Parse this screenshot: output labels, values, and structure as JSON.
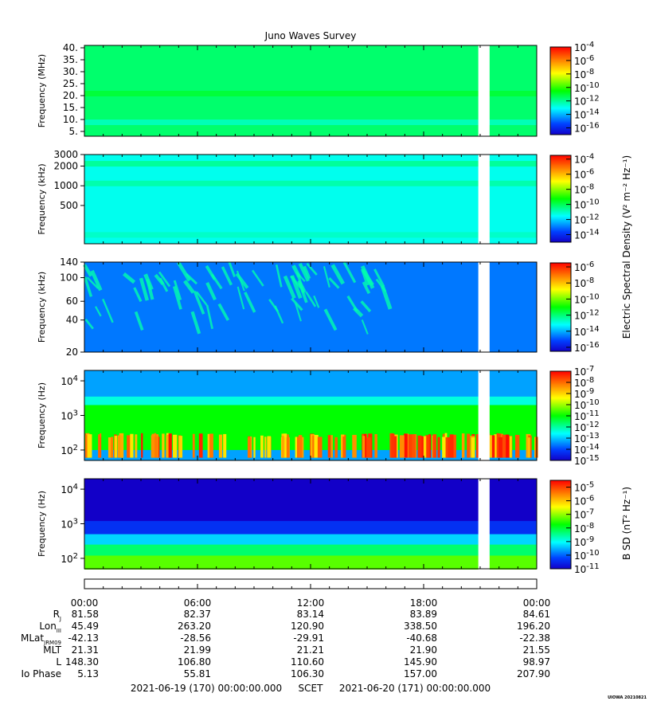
{
  "title": "Juno Waves Survey",
  "footer": {
    "start": "2021-06-19 (170) 00:00:00.000",
    "mid": "SCET",
    "end": "2021-06-20 (171) 00:00:00.000",
    "credit": "UIOWA 20210821"
  },
  "colorbar_labels": {
    "e": "Electric Spectral Density (V² m⁻² Hz⁻¹)",
    "b": "B SD (nT² Hz⁻¹)"
  },
  "colors": {
    "background_hf": "#00ffe0",
    "background_low": "#1e5fff",
    "gap": "#ffffff"
  },
  "chart_data": [
    {
      "type": "heatmap",
      "panel": "HFR-high",
      "ylabel": "Frequency (MHz)",
      "yscale": "linear",
      "ylim": [
        3,
        41
      ],
      "yticks": [
        "40.",
        "35.",
        "30.",
        "25.",
        "20.",
        "15.",
        "10.",
        "5."
      ],
      "ytick_values": [
        40,
        35,
        30,
        25,
        20,
        15,
        10,
        5
      ],
      "colorbar": {
        "ticks": [
          "10-4",
          "10-6",
          "10-8",
          "10-10",
          "10-12",
          "10-14",
          "10-16"
        ],
        "range": [
          -17,
          -4
        ]
      },
      "bands": [
        {
          "freq": 21,
          "level": -11
        },
        {
          "freq": 9,
          "level": -12.5
        }
      ],
      "data_gap_hours": [
        20.9,
        21.5
      ]
    },
    {
      "type": "heatmap",
      "panel": "HFR-low",
      "ylabel": "Frequency (kHz)",
      "yscale": "log",
      "ylim": [
        130,
        3000
      ],
      "yticks": [
        "3000",
        "2000",
        "1000",
        "500"
      ],
      "ytick_values": [
        3000,
        2000,
        1000,
        500
      ],
      "colorbar": {
        "ticks": [
          "10-4",
          "10-6",
          "10-8",
          "10-10",
          "10-12",
          "10-14"
        ],
        "range": [
          -15,
          -3.5
        ]
      },
      "bands": [
        {
          "freq": 2200,
          "level": -10.5
        },
        {
          "freq": 1100,
          "level": -10.7
        },
        {
          "freq": 180,
          "level": -11
        }
      ],
      "data_gap_hours": [
        20.9,
        21.5
      ]
    },
    {
      "type": "heatmap",
      "panel": "LFR-high",
      "ylabel": "Frequency (kHz)",
      "yscale": "log",
      "ylim": [
        20,
        140
      ],
      "yticks": [
        "140",
        "100",
        "60",
        "40",
        "20"
      ],
      "ytick_values": [
        140,
        100,
        60,
        40,
        20
      ],
      "colorbar": {
        "ticks": [
          "10-6",
          "10-8",
          "10-10",
          "10-12",
          "10-14",
          "10-16"
        ],
        "range": [
          -16.5,
          -5.5
        ]
      },
      "data_gap_hours": [
        20.9,
        21.5
      ]
    },
    {
      "type": "heatmap",
      "panel": "LFR-E",
      "ylabel": "Frequency (Hz)",
      "yscale": "log",
      "ylim": [
        50,
        20000
      ],
      "yticks": [
        "10⁴",
        "10³",
        "10²"
      ],
      "ytick_values": [
        10000,
        1000,
        100
      ],
      "colorbar": {
        "ticks": [
          "10-7",
          "10-8",
          "10-9",
          "10-10",
          "10-11",
          "10-12",
          "10-13",
          "10-14",
          "10-15"
        ],
        "range": [
          -15,
          -7
        ]
      },
      "data_gap_hours": [
        20.9,
        21.5
      ]
    },
    {
      "type": "heatmap",
      "panel": "LFR-B",
      "ylabel": "Frequency (Hz)",
      "yscale": "log",
      "ylim": [
        50,
        20000
      ],
      "yticks": [
        "10⁴",
        "10³",
        "10²"
      ],
      "ytick_values": [
        10000,
        1000,
        100
      ],
      "colorbar": {
        "ticks": [
          "10-5",
          "10-6",
          "10-7",
          "10-8",
          "10-9",
          "10-10",
          "10-11"
        ],
        "range": [
          -11,
          -4.5
        ]
      },
      "data_gap_hours": [
        20.9,
        21.5
      ]
    }
  ],
  "time_axis": {
    "hours": [
      0,
      6,
      12,
      18,
      24
    ],
    "labels": [
      "00:00",
      "06:00",
      "12:00",
      "18:00",
      "00:00"
    ]
  },
  "ephemeris": [
    {
      "label": "R",
      "sub": "J",
      "values": [
        "81.58",
        "82.37",
        "83.14",
        "83.89",
        "84.61"
      ]
    },
    {
      "label": "Lon",
      "sub": "III",
      "values": [
        "45.49",
        "263.20",
        "120.90",
        "338.50",
        "196.20"
      ]
    },
    {
      "label": "MLat",
      "sub": "JRM09",
      "values": [
        "-42.13",
        "-28.56",
        "-29.91",
        "-40.68",
        "-22.38"
      ]
    },
    {
      "label": "MLT",
      "sub": "",
      "values": [
        "21.31",
        "21.99",
        "21.21",
        "21.90",
        "21.55"
      ]
    },
    {
      "label": "L",
      "sub": "",
      "values": [
        "148.30",
        "106.80",
        "110.60",
        "145.90",
        "98.97"
      ]
    },
    {
      "label": "Io Phase",
      "sub": "",
      "values": [
        "5.13",
        "55.81",
        "106.30",
        "157.00",
        "207.90"
      ]
    }
  ]
}
